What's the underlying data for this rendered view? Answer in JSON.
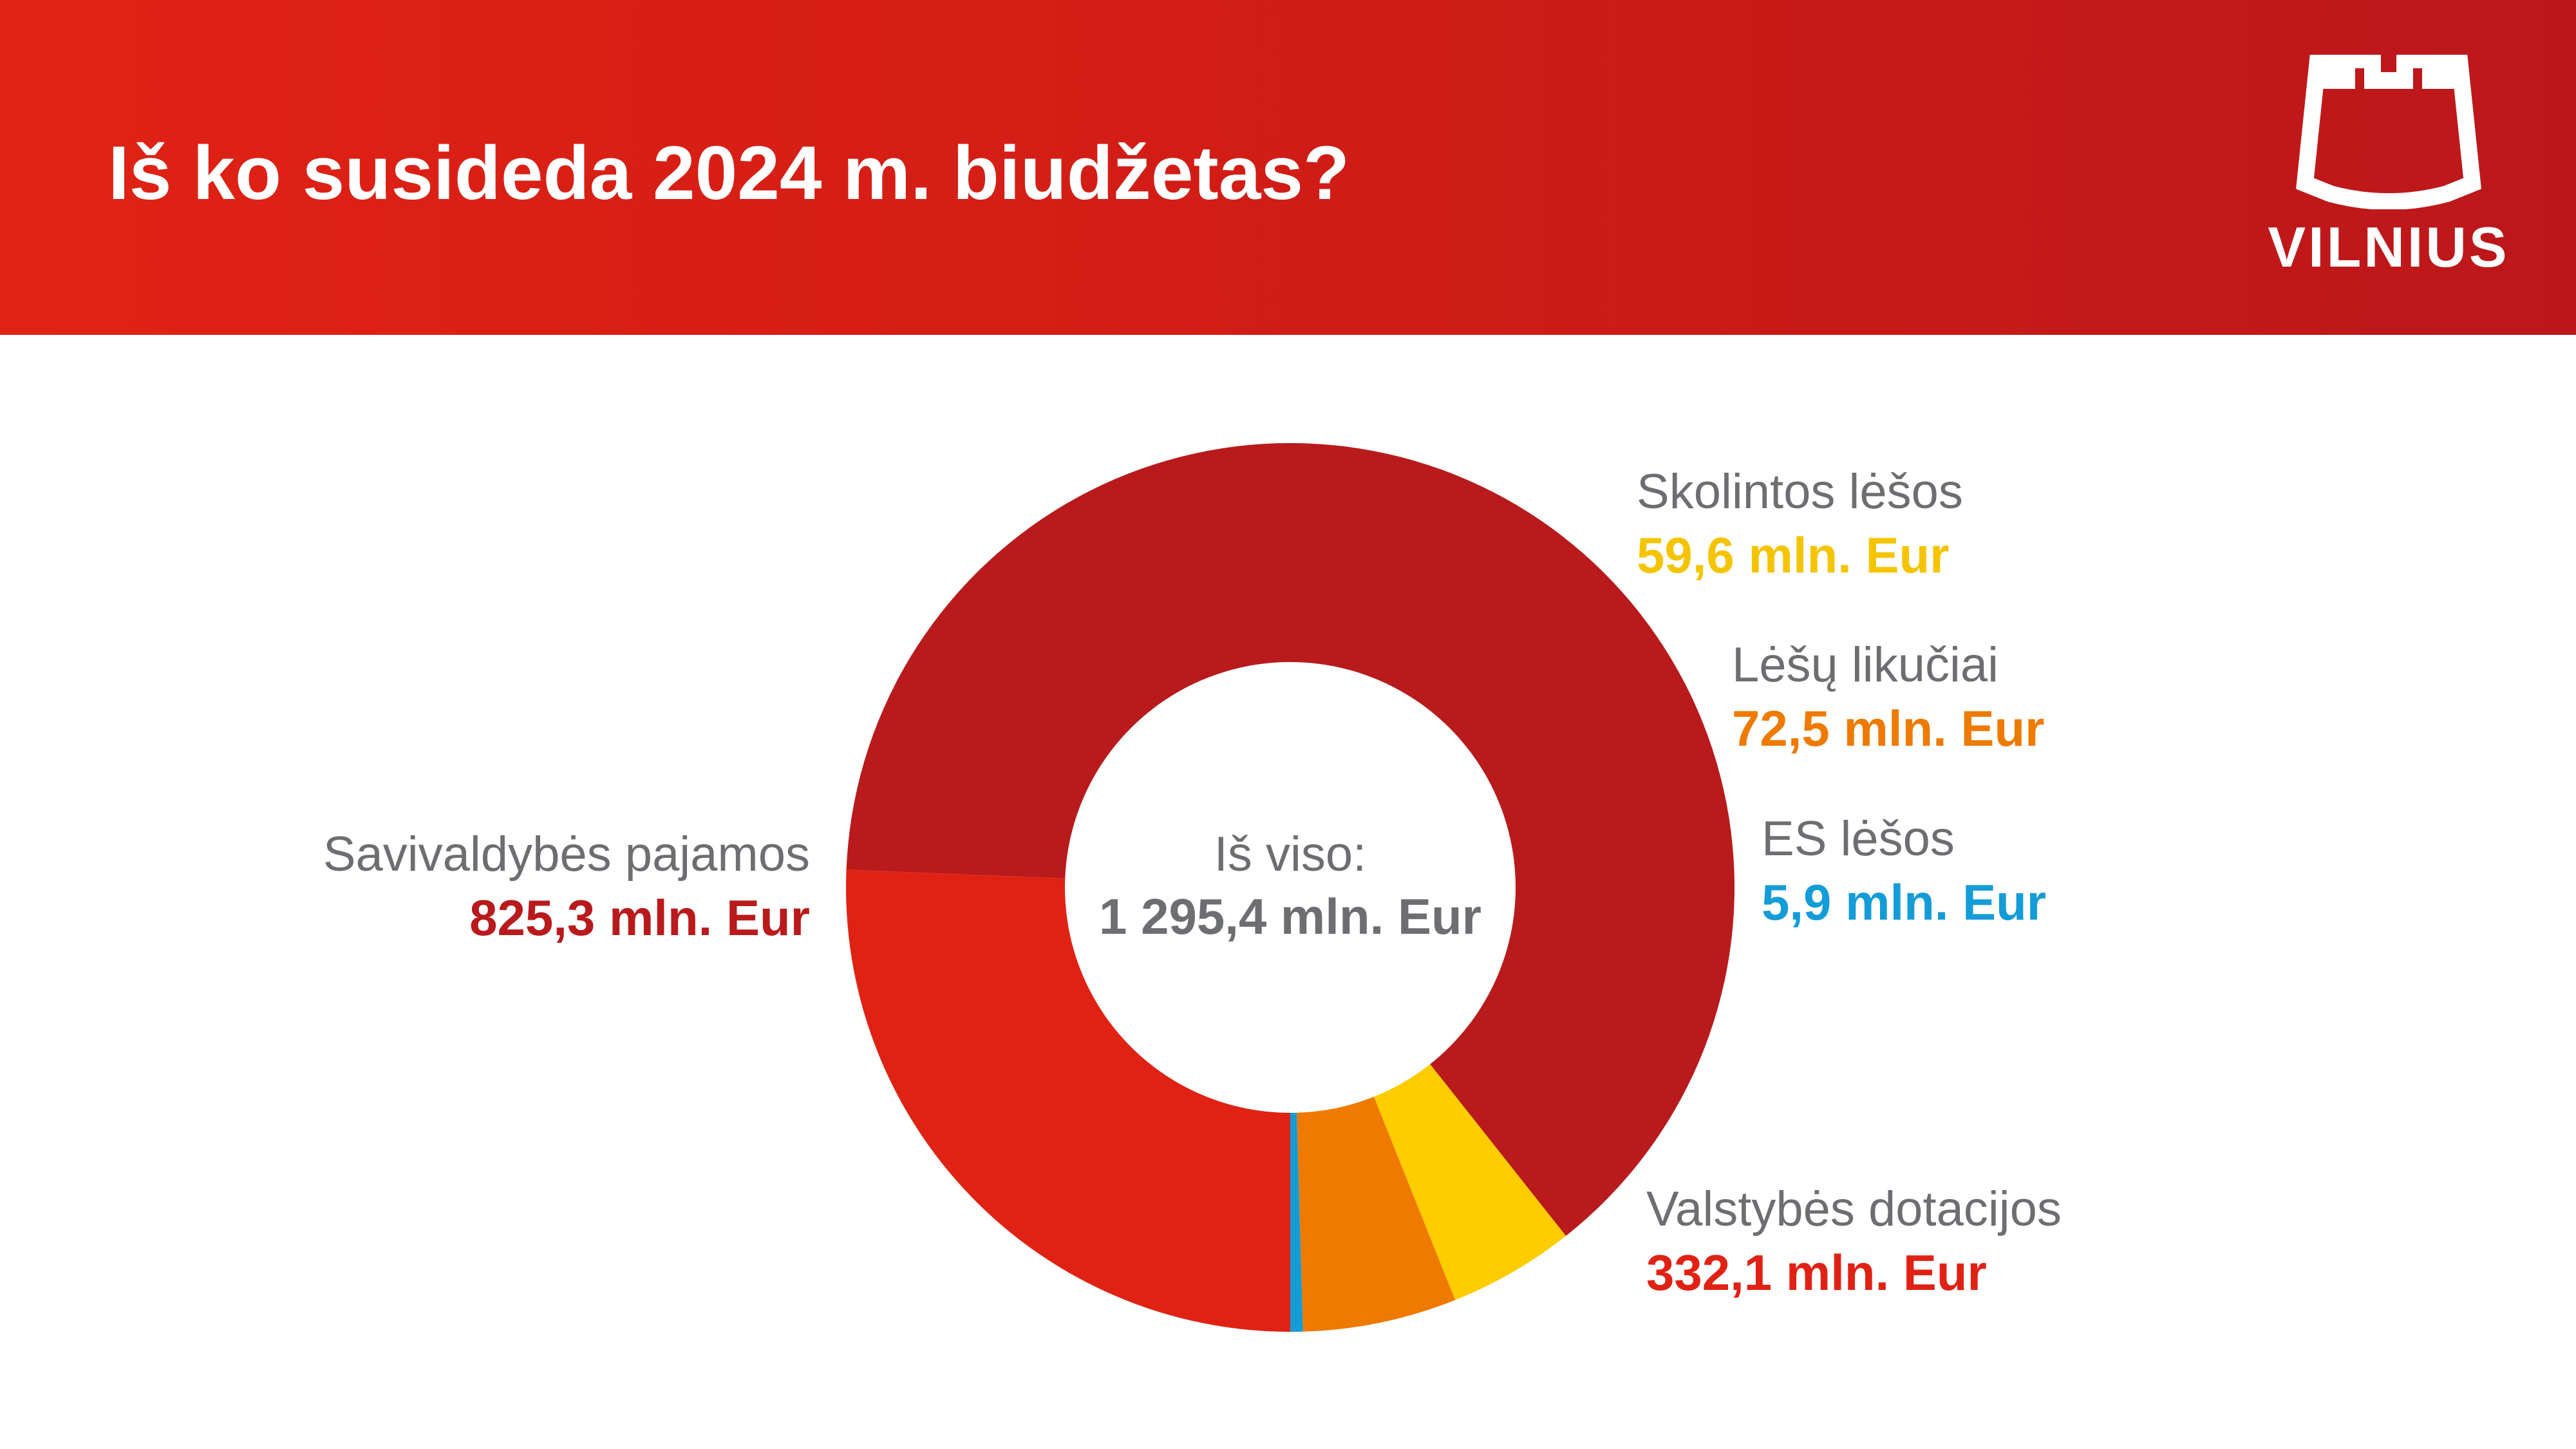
{
  "header": {
    "title": "Iš ko susideda 2024 m. biudžetas?",
    "logo_text": "VILNIUS",
    "background_color": "#d41f16"
  },
  "chart_data": {
    "type": "pie",
    "title": "Iš ko susideda 2024 m. biudžetas?",
    "unit": "mln. Eur",
    "center_label": "Iš viso:",
    "center_value": "1 295,4 mln. Eur",
    "total": 1295.4,
    "slices": [
      {
        "name": "Valstybės dotacijos",
        "value": 332.1,
        "value_label": "332,1 mln. Eur",
        "color": "#e02214"
      },
      {
        "name": "Savivaldybės pajamos",
        "value": 825.3,
        "value_label": "825,3 mln. Eur",
        "color": "#b91a1c"
      },
      {
        "name": "Skolintos lėšos",
        "value": 59.6,
        "value_label": "59,6 mln. Eur",
        "color": "#ffcc00"
      },
      {
        "name": "Lėšų likučiai",
        "value": 72.5,
        "value_label": "72,5 mln. Eur",
        "color": "#ee7a00"
      },
      {
        "name": "ES lėšos",
        "value": 5.9,
        "value_label": "5,9 mln. Eur",
        "color": "#149cd8"
      }
    ]
  }
}
